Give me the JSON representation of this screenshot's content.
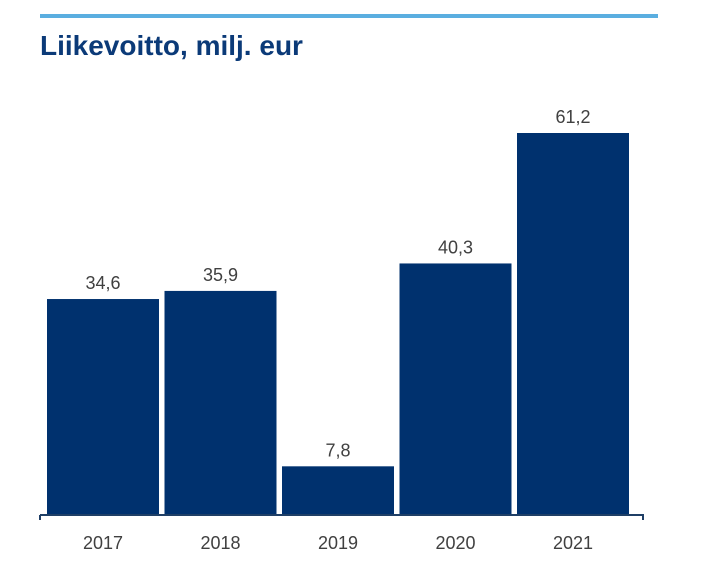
{
  "chart_data": {
    "type": "bar",
    "title": "Liikevoitto, milj. eur",
    "categories": [
      "2017",
      "2018",
      "2019",
      "2020",
      "2021"
    ],
    "values": [
      34.6,
      35.9,
      7.8,
      40.3,
      61.2
    ],
    "value_labels": [
      "34,6",
      "35,9",
      "7,8",
      "40,3",
      "61,2"
    ],
    "ylim": [
      0,
      61.2
    ],
    "grid": false,
    "legend": "none",
    "xlabel": "",
    "ylabel": ""
  },
  "colors": {
    "bar": "#00316e",
    "title": "#0b3a78",
    "accent_rule": "#5aaee0",
    "axis": "#1f3f66",
    "text": "#404040"
  }
}
